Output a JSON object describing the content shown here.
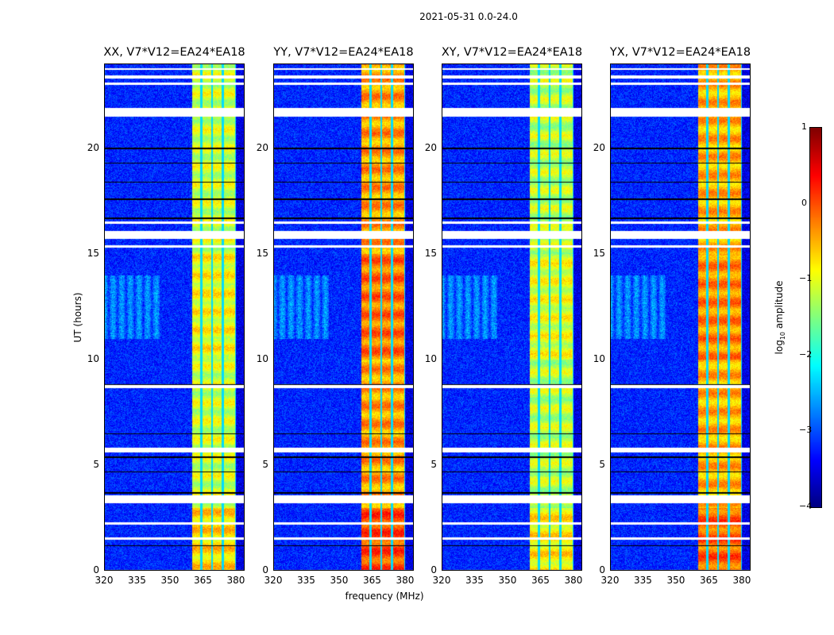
{
  "chart_data": {
    "type": "heatmap",
    "title": "2021-05-31 0.0-24.0",
    "xlabel": "frequency (MHz)",
    "ylabel": "UT (hours)",
    "xlim": [
      320,
      384
    ],
    "ylim": [
      0,
      24
    ],
    "xticks": [
      "320",
      "335",
      "350",
      "365",
      "380"
    ],
    "xtick_values": [
      320,
      335,
      350,
      365,
      380
    ],
    "yticks": [
      "0",
      "5",
      "10",
      "15",
      "20"
    ],
    "ytick_values": [
      0,
      5,
      10,
      15,
      20
    ],
    "panels": [
      {
        "title": "XX, V7*V12=EA24*EA18",
        "band_level": -1.1
      },
      {
        "title": "YY, V7*V12=EA24*EA18",
        "band_level": -0.4
      },
      {
        "title": "XY, V7*V12=EA24*EA18",
        "band_level": -1.2
      },
      {
        "title": "YX, V7*V12=EA24*EA18",
        "band_level": -0.5
      }
    ],
    "background_level": -3.2,
    "rfi_band_mhz": [
      360,
      380
    ],
    "band_channel_gaps_mhz": [
      364,
      369,
      374,
      380
    ],
    "flagged_hours": [
      [
        23.7,
        23.8
      ],
      [
        23.3,
        23.45
      ],
      [
        23.0,
        23.1
      ],
      [
        21.5,
        21.9
      ],
      [
        16.45,
        16.55
      ],
      [
        15.7,
        16.1
      ],
      [
        15.3,
        15.4
      ],
      [
        8.65,
        8.8
      ],
      [
        5.6,
        5.85
      ],
      [
        3.2,
        3.6
      ],
      [
        2.2,
        2.3
      ],
      [
        1.5,
        1.6
      ],
      [
        0.0,
        0.05
      ]
    ],
    "dark_rows_hours": [
      20.0,
      19.3,
      18.4,
      17.6,
      16.7,
      8.8,
      6.5,
      5.4,
      4.7,
      3.7,
      1.2
    ],
    "colorbar": {
      "label": "log10 amplitude",
      "range": [
        -4,
        1
      ],
      "ticks": [
        "1",
        "0",
        "−1",
        "−2",
        "−3",
        "−4"
      ],
      "tick_values": [
        1,
        0,
        -1,
        -2,
        -3,
        -4
      ],
      "colormap": "jet"
    }
  }
}
